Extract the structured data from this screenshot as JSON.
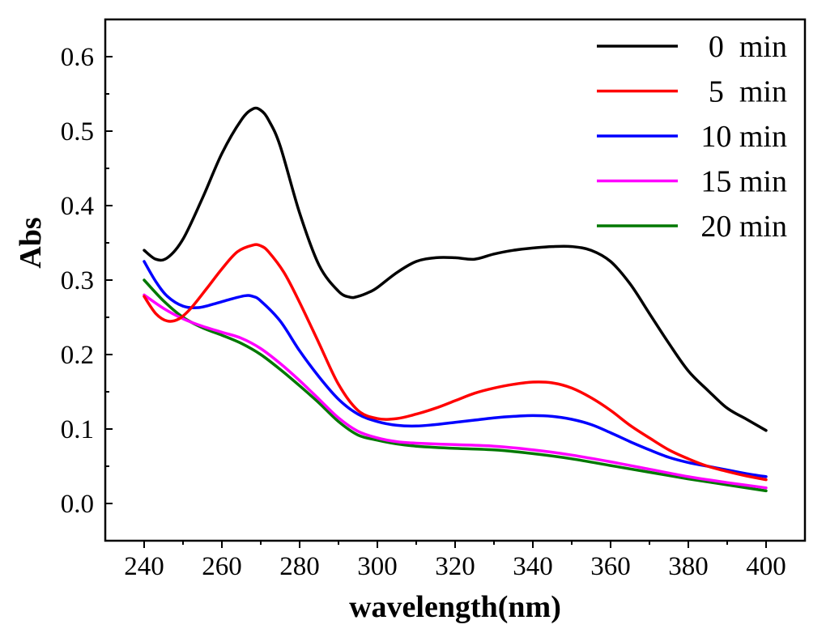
{
  "chart_data": {
    "type": "line",
    "xlabel": "wavelength(nm)",
    "ylabel": "Abs",
    "xlim": [
      230,
      410
    ],
    "ylim": [
      -0.05,
      0.65
    ],
    "xticks": [
      240,
      260,
      280,
      300,
      320,
      340,
      360,
      380,
      400
    ],
    "xtick_labels": [
      "240",
      "260",
      "280",
      "300",
      "320",
      "340",
      "360",
      "380",
      "400"
    ],
    "yticks": [
      0.0,
      0.1,
      0.2,
      0.3,
      0.4,
      0.5,
      0.6
    ],
    "ytick_labels": [
      "0.0",
      "0.1",
      "0.2",
      "0.3",
      "0.4",
      "0.5",
      "0.6"
    ],
    "grid": false,
    "legend_position": "top-right",
    "series": [
      {
        "name": "0  min",
        "color": "#000000",
        "x": [
          240,
          243,
          246,
          250,
          255,
          260,
          265,
          268,
          270,
          272,
          275,
          280,
          285,
          290,
          293,
          295,
          298,
          300,
          305,
          310,
          315,
          320,
          325,
          330,
          335,
          340,
          345,
          350,
          355,
          360,
          365,
          370,
          375,
          380,
          385,
          390,
          395,
          400
        ],
        "y": [
          0.34,
          0.328,
          0.33,
          0.355,
          0.41,
          0.47,
          0.515,
          0.53,
          0.528,
          0.515,
          0.48,
          0.39,
          0.32,
          0.285,
          0.277,
          0.278,
          0.284,
          0.29,
          0.31,
          0.325,
          0.33,
          0.33,
          0.328,
          0.335,
          0.34,
          0.343,
          0.345,
          0.345,
          0.34,
          0.325,
          0.295,
          0.255,
          0.215,
          0.178,
          0.152,
          0.128,
          0.113,
          0.098
        ]
      },
      {
        "name": "5  min",
        "color": "#ff0000",
        "x": [
          240,
          243,
          246,
          249,
          252,
          256,
          260,
          264,
          268,
          270,
          272,
          276,
          280,
          285,
          290,
          295,
          300,
          305,
          310,
          315,
          320,
          325,
          330,
          335,
          340,
          345,
          350,
          355,
          360,
          365,
          370,
          375,
          380,
          385,
          390,
          395,
          400
        ],
        "y": [
          0.278,
          0.255,
          0.245,
          0.248,
          0.262,
          0.288,
          0.315,
          0.338,
          0.347,
          0.346,
          0.338,
          0.31,
          0.27,
          0.215,
          0.16,
          0.125,
          0.114,
          0.114,
          0.12,
          0.128,
          0.138,
          0.148,
          0.155,
          0.16,
          0.163,
          0.162,
          0.155,
          0.142,
          0.125,
          0.105,
          0.088,
          0.072,
          0.06,
          0.05,
          0.043,
          0.037,
          0.032
        ]
      },
      {
        "name": "10 min",
        "color": "#0000ff",
        "x": [
          240,
          243,
          246,
          250,
          254,
          258,
          262,
          266,
          268,
          270,
          275,
          280,
          285,
          290,
          295,
          300,
          305,
          310,
          315,
          320,
          325,
          330,
          335,
          340,
          345,
          350,
          355,
          360,
          365,
          370,
          375,
          380,
          385,
          390,
          395,
          400
        ],
        "y": [
          0.325,
          0.298,
          0.278,
          0.265,
          0.263,
          0.268,
          0.274,
          0.279,
          0.278,
          0.272,
          0.245,
          0.205,
          0.17,
          0.14,
          0.12,
          0.11,
          0.105,
          0.104,
          0.106,
          0.109,
          0.112,
          0.115,
          0.117,
          0.118,
          0.117,
          0.113,
          0.106,
          0.095,
          0.083,
          0.072,
          0.062,
          0.055,
          0.05,
          0.045,
          0.04,
          0.036
        ]
      },
      {
        "name": "15 min",
        "color": "#ff00ff",
        "x": [
          240,
          245,
          250,
          255,
          260,
          265,
          270,
          275,
          280,
          285,
          290,
          295,
          300,
          305,
          310,
          320,
          330,
          340,
          350,
          360,
          370,
          380,
          390,
          400
        ],
        "y": [
          0.28,
          0.262,
          0.248,
          0.238,
          0.23,
          0.222,
          0.208,
          0.188,
          0.165,
          0.14,
          0.115,
          0.097,
          0.088,
          0.083,
          0.081,
          0.079,
          0.077,
          0.072,
          0.065,
          0.056,
          0.046,
          0.036,
          0.028,
          0.021
        ]
      },
      {
        "name": "20 min",
        "color": "#007800",
        "x": [
          240,
          245,
          250,
          255,
          260,
          265,
          270,
          275,
          280,
          285,
          290,
          295,
          300,
          305,
          310,
          320,
          330,
          340,
          350,
          360,
          370,
          380,
          390,
          400
        ],
        "y": [
          0.3,
          0.272,
          0.25,
          0.236,
          0.226,
          0.215,
          0.2,
          0.18,
          0.158,
          0.135,
          0.11,
          0.092,
          0.085,
          0.08,
          0.077,
          0.074,
          0.072,
          0.067,
          0.06,
          0.051,
          0.042,
          0.033,
          0.025,
          0.017
        ]
      }
    ]
  }
}
